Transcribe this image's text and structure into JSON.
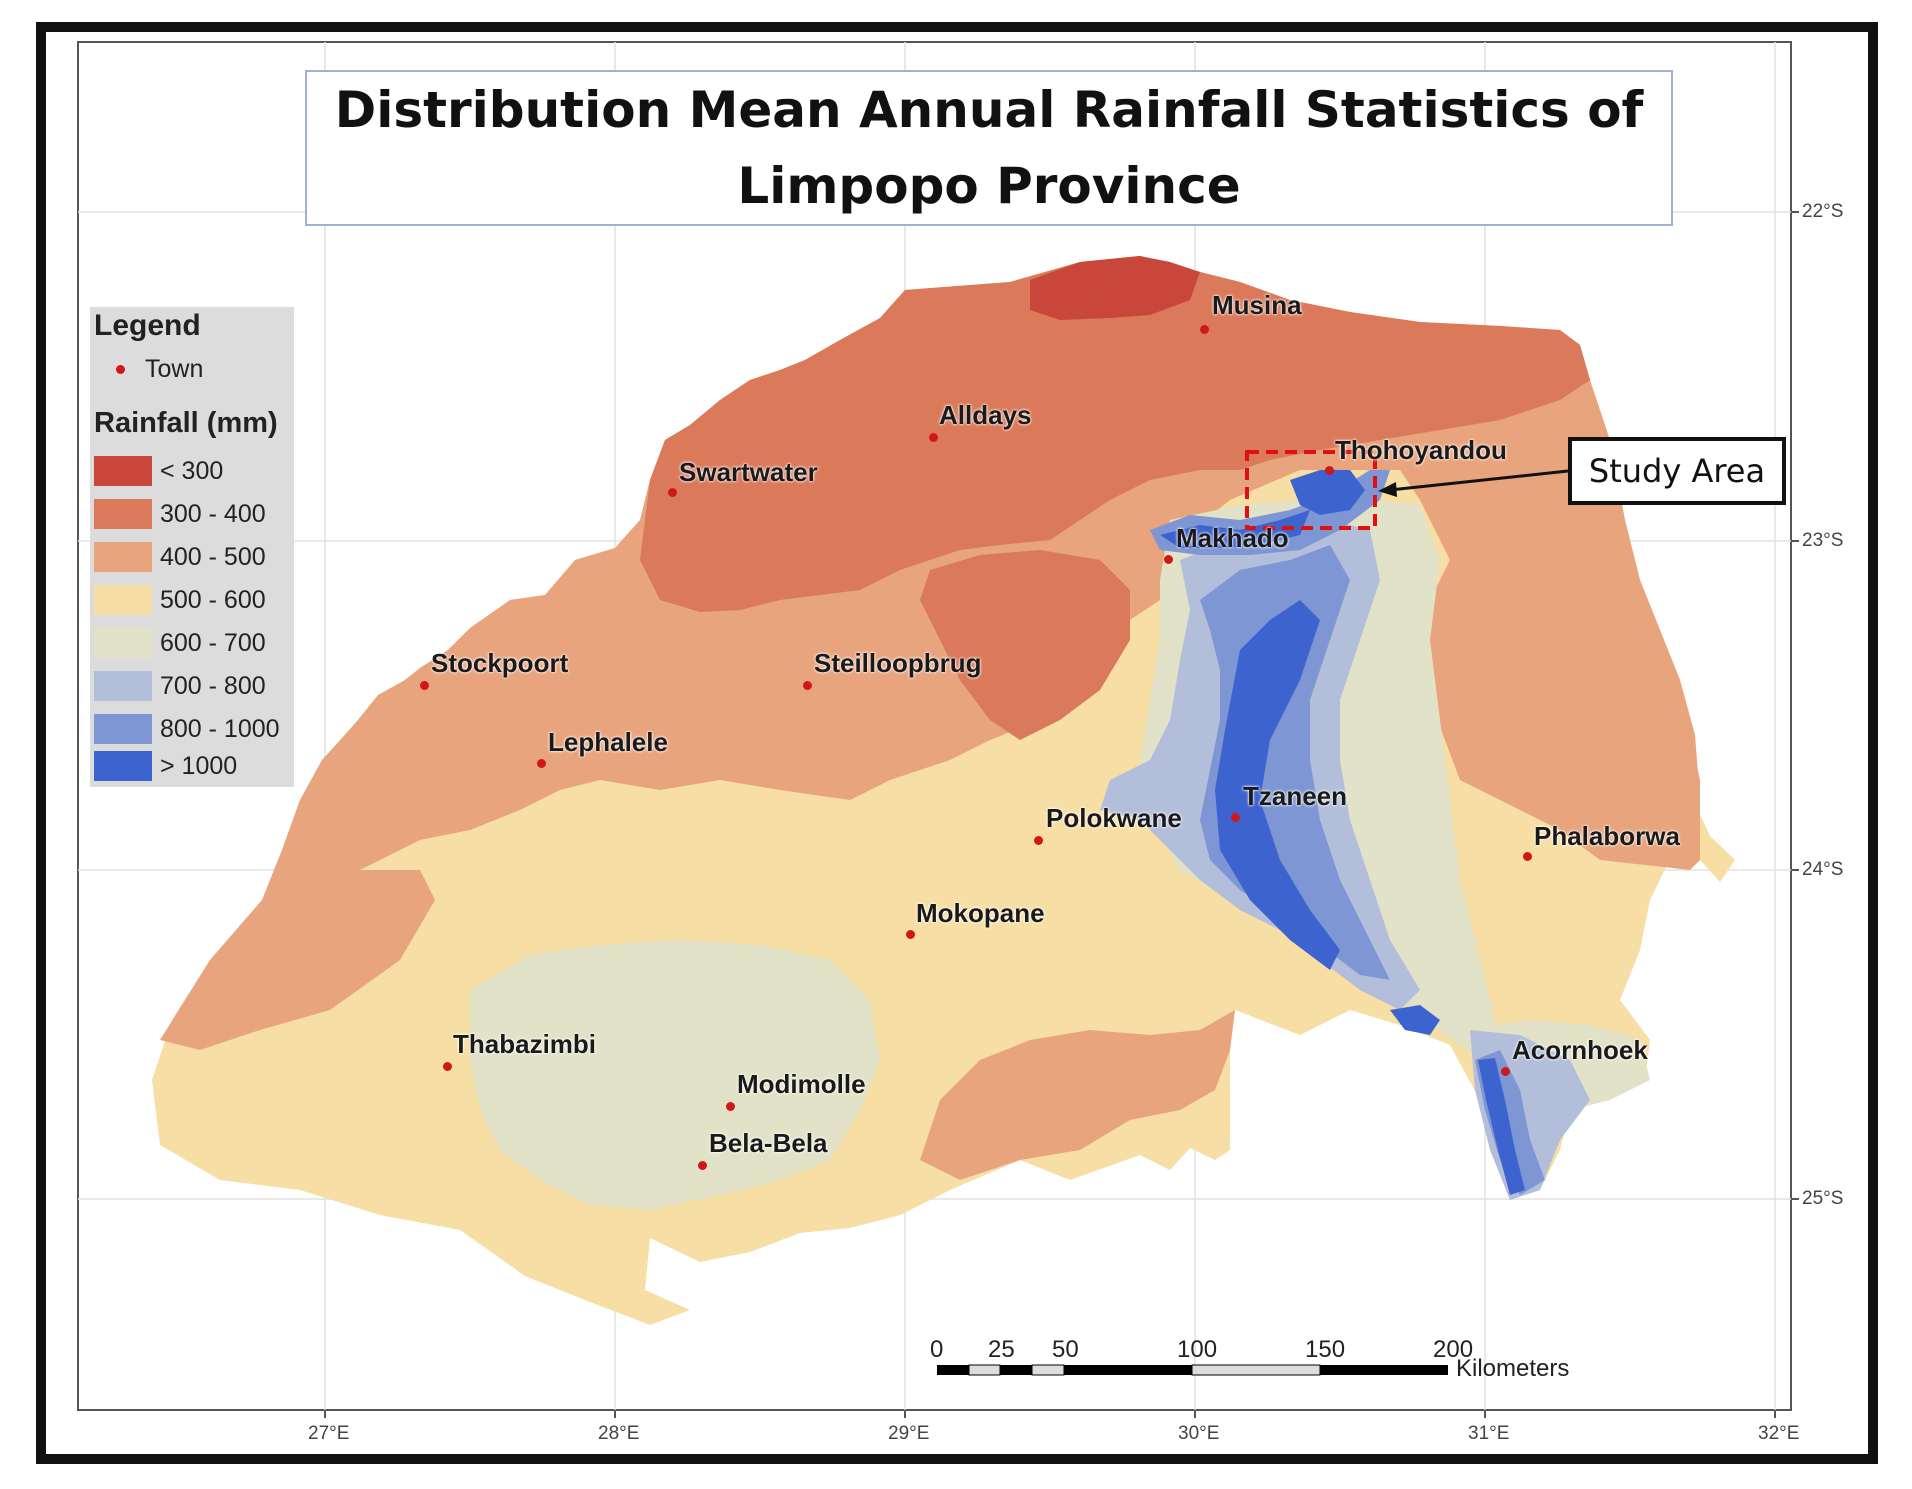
{
  "title": "Distribution Mean Annual Rainfall Statistics of Limpopo Province",
  "legend": {
    "heading": "Legend",
    "town_label": "Town",
    "rainfall_heading": "Rainfall (mm)",
    "classes": [
      {
        "label": "< 300",
        "color": "#c8473a"
      },
      {
        "label": "300 - 400",
        "color": "#da7a5a"
      },
      {
        "label": "400 - 500",
        "color": "#e8a47c"
      },
      {
        "label": "500 - 600",
        "color": "#f6dea4"
      },
      {
        "label": "600 - 700",
        "color": "#e2e2c8"
      },
      {
        "label": "700 - 800",
        "color": "#b3bedb"
      },
      {
        "label": "800 - 1000",
        "color": "#7e96d4"
      },
      {
        "label": "> 1000",
        "color": "#3d63cf"
      }
    ]
  },
  "towns": [
    "Musina",
    "Alldays",
    "Swartwater",
    "Thohoyandou",
    "Makhado",
    "Stockpoort",
    "Steilloopbrug",
    "Lephalele",
    "Polokwane",
    "Tzaneen",
    "Phalaborwa",
    "Mokopane",
    "Thabazimbi",
    "Modimolle",
    "Bela-Bela",
    "Acornhoek"
  ],
  "study_area_label": "Study Area",
  "axes": {
    "longitude_ticks": [
      "27°E",
      "28°E",
      "29°E",
      "30°E",
      "31°E",
      "32°E"
    ],
    "latitude_ticks": [
      "22°S",
      "23°S",
      "24°S",
      "25°S"
    ]
  },
  "scale_bar": {
    "ticks": [
      "0",
      "25",
      "50",
      "100",
      "150",
      "200"
    ],
    "unit": "Kilometers"
  },
  "colors": {
    "town_marker": "#d01818",
    "study_area_outline": "#e01010",
    "frame": "#111111"
  }
}
